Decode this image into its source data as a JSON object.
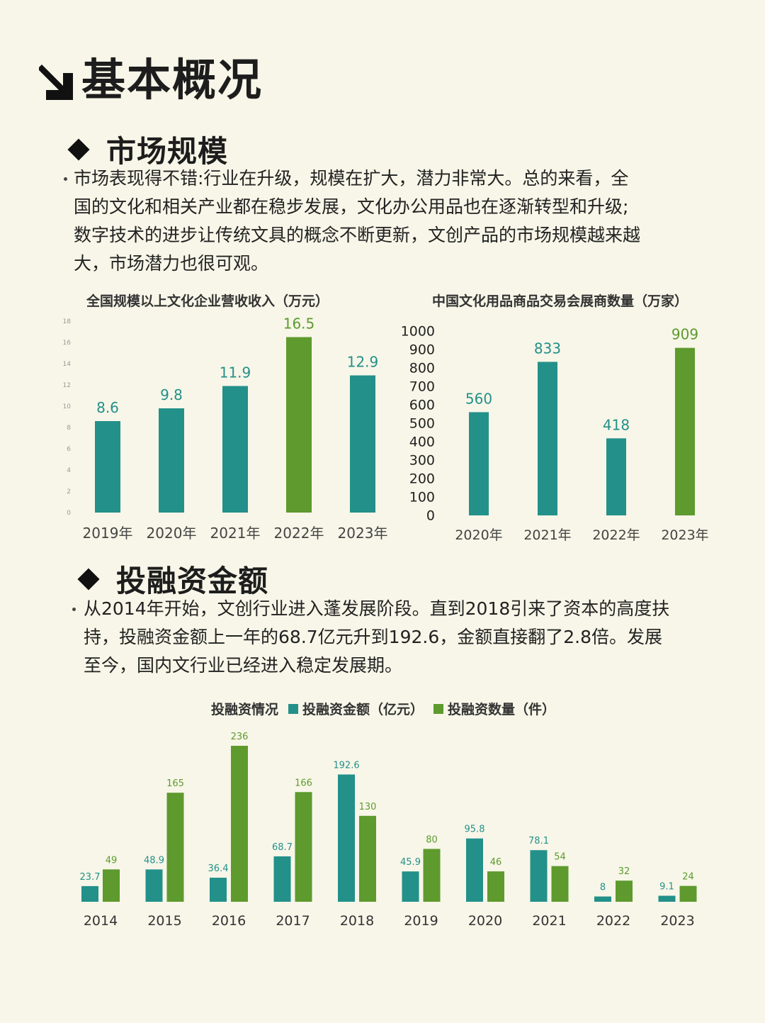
{
  "page": {
    "title": "基本概况"
  },
  "colors": {
    "teal": "#23908a",
    "green": "#5e9a2e",
    "background": "#f7f6e8"
  },
  "section1": {
    "title": "市场规模",
    "lines": [
      "市场表现得不错:行业在升级，规模在扩大，潜力非常大。总的来看，全",
      "国的文化和相关产业都在稳步发展，文化办公用品也在逐渐转型和升级;",
      "数字技术的进步让传统文具的概念不断更新，文创产品的市场规模越来越",
      "大，市场潜力也很可观。"
    ]
  },
  "section2": {
    "title": "投融资金额",
    "lines": [
      "从2014年开始，文创行业进入蓬发展阶段。直到2018引来了资本的高度扶",
      "持，投融资金额上一年的68.7亿元升到192.6，金额直接翻了2.8倍。发展",
      "至今，国内文行业已经进入稳定发展期。"
    ]
  },
  "chart_data": [
    {
      "type": "bar",
      "title": "全国规模以上文化企业营收收入（万元）",
      "categories": [
        "2019年",
        "2020年",
        "2021年",
        "2022年",
        "2023年"
      ],
      "values": [
        8.6,
        9.8,
        11.9,
        16.5,
        12.9
      ],
      "highlight_index": 3,
      "yticks": [
        0,
        2,
        4,
        6,
        8,
        10,
        12,
        14,
        16,
        18
      ],
      "ylim": [
        0,
        18
      ],
      "grid": false
    },
    {
      "type": "bar",
      "title": "中国文化用品商品交易会展商数量（万家）",
      "categories": [
        "2020年",
        "2021年",
        "2022年",
        "2023年"
      ],
      "values": [
        560,
        833,
        418,
        909
      ],
      "highlight_index": 3,
      "yticks": [
        0,
        100,
        200,
        300,
        400,
        500,
        600,
        700,
        800,
        900,
        1000
      ],
      "ylim": [
        0,
        1000
      ],
      "grid": false
    },
    {
      "type": "bar",
      "title": "投融资情况",
      "categories": [
        "2014",
        "2015",
        "2016",
        "2017",
        "2018",
        "2019",
        "2020",
        "2021",
        "2022",
        "2023"
      ],
      "series": [
        {
          "name": "投融资金额（亿元）",
          "color": "teal",
          "values": [
            23.7,
            48.9,
            36.4,
            68.7,
            192.6,
            45.9,
            95.8,
            78.1,
            8,
            9.1
          ],
          "labels": [
            "23.7",
            "48.9",
            "36.4",
            "68.7",
            "192.6",
            "45.9",
            "95.8",
            "78.1",
            "8",
            "9.1"
          ]
        },
        {
          "name": "投融资数量（件）",
          "color": "green",
          "values": [
            49,
            165,
            236,
            166,
            130,
            80,
            46,
            54,
            32,
            24
          ],
          "labels": [
            "49",
            "165",
            "236",
            "166",
            "130",
            "80",
            "46",
            "54",
            "32",
            "24"
          ]
        }
      ],
      "ylim": [
        0,
        236
      ],
      "legend": "top"
    }
  ]
}
